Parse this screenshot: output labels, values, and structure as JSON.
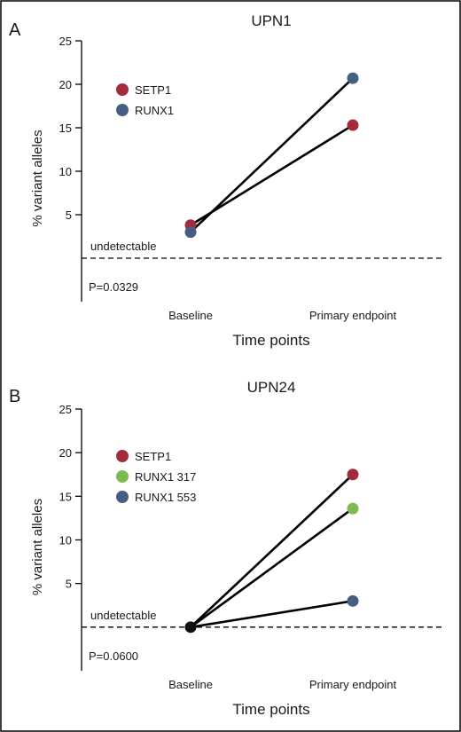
{
  "chart_data": [
    {
      "panel": "A",
      "type": "line",
      "title": "UPN1",
      "xlabel": "Time points",
      "ylabel": "% variant alleles",
      "categories": [
        "Baseline",
        "Primary endpoint"
      ],
      "ylim": [
        -5,
        25
      ],
      "yticks": [
        5,
        10,
        15,
        20,
        25
      ],
      "series": [
        {
          "name": "SETP1",
          "color": "#a32b3c",
          "values": [
            3.8,
            15.3
          ]
        },
        {
          "name": "RUNX1",
          "color": "#465e82",
          "values": [
            3.0,
            20.7
          ]
        }
      ],
      "threshold": {
        "label": "undetectable",
        "value": 0
      },
      "annotation": "P=0.0329",
      "legend_position": "top-left",
      "grid": false
    },
    {
      "panel": "B",
      "type": "line",
      "title": "UPN24",
      "xlabel": "Time points",
      "ylabel": "% variant alleles",
      "categories": [
        "Baseline",
        "Primary endpoint"
      ],
      "ylim": [
        -5,
        25
      ],
      "yticks": [
        5,
        10,
        15,
        20,
        25
      ],
      "series": [
        {
          "name": "SETP1",
          "color": "#a32b3c",
          "values": [
            0,
            17.5
          ]
        },
        {
          "name": "RUNX1 317",
          "color": "#7dba4f",
          "values": [
            0,
            13.6
          ]
        },
        {
          "name": "RUNX1 553",
          "color": "#465e82",
          "values": [
            0,
            3.0
          ]
        }
      ],
      "baseline_point_color": "#111111",
      "threshold": {
        "label": "undetectable",
        "value": 0
      },
      "annotation": "P=0.0600",
      "legend_position": "top-left",
      "grid": false
    }
  ]
}
